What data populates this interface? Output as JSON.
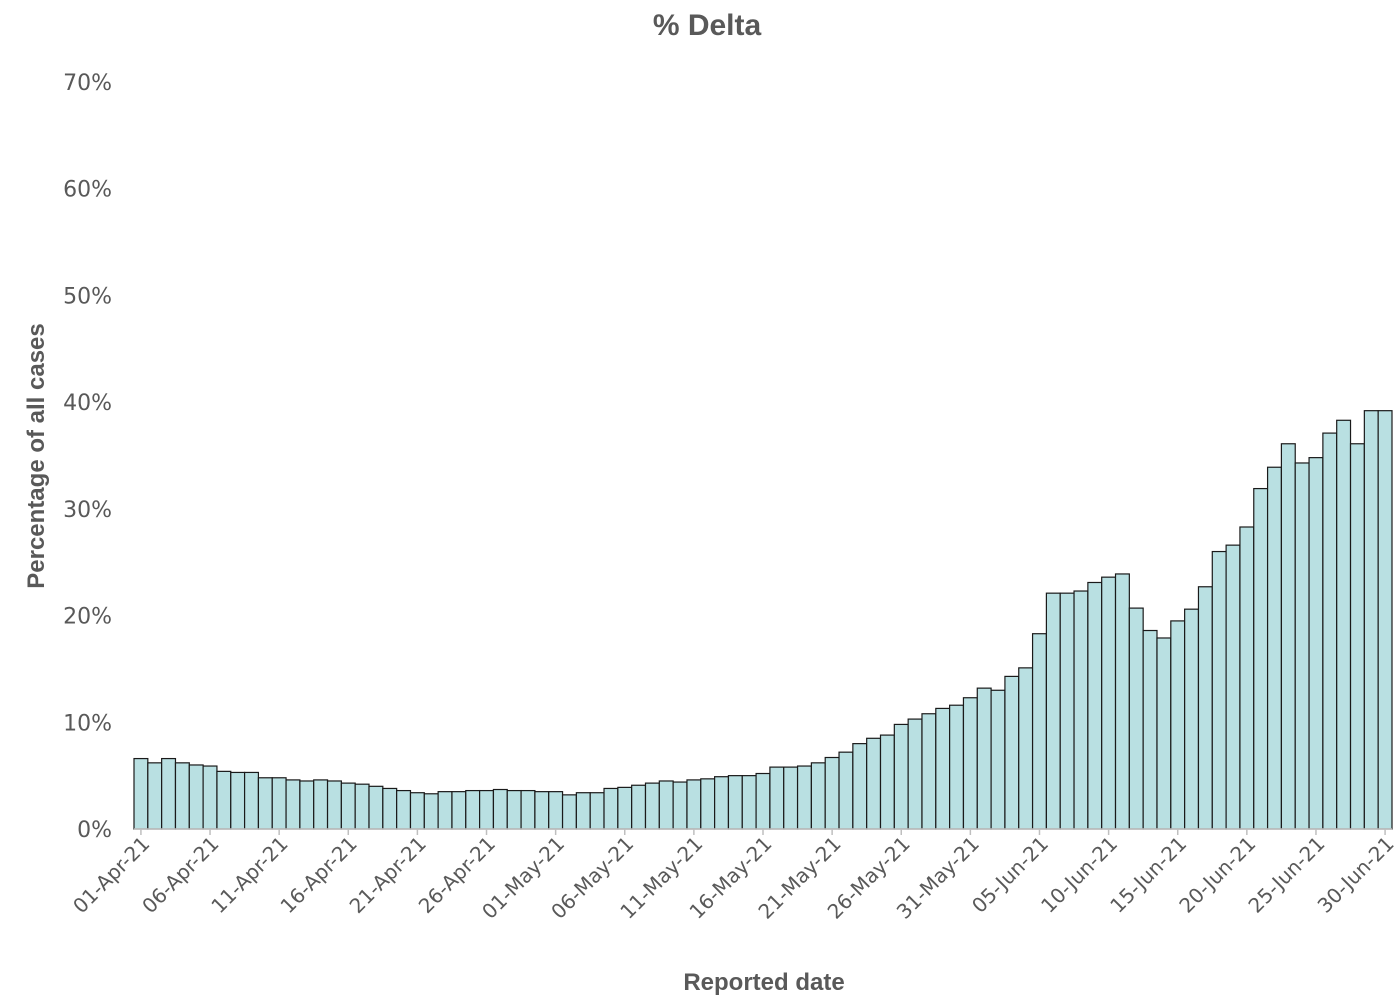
{
  "chart_data": {
    "type": "bar",
    "title": "% Delta",
    "xlabel": "Reported date",
    "ylabel": "Percentage of all cases",
    "ylim": [
      0,
      70
    ],
    "ytick_labels": [
      "0%",
      "10%",
      "20%",
      "30%",
      "40%",
      "50%",
      "60%",
      "70%"
    ],
    "xtick_labels": [
      "01-Apr-21",
      "06-Apr-21",
      "11-Apr-21",
      "16-Apr-21",
      "21-Apr-21",
      "26-Apr-21",
      "01-May-21",
      "06-May-21",
      "11-May-21",
      "16-May-21",
      "21-May-21",
      "26-May-21",
      "31-May-21",
      "05-Jun-21",
      "10-Jun-21",
      "15-Jun-21",
      "20-Jun-21",
      "25-Jun-21",
      "30-Jun-21"
    ],
    "grid": false,
    "legend": "none",
    "bar_color": "#b9e0e2",
    "start_date": "2021-04-01",
    "values": [
      6.6,
      6.2,
      6.6,
      6.2,
      6.0,
      5.9,
      5.4,
      5.3,
      5.3,
      4.8,
      4.8,
      4.6,
      4.5,
      4.6,
      4.5,
      4.3,
      4.2,
      4.0,
      3.8,
      3.6,
      3.4,
      3.3,
      3.5,
      3.5,
      3.6,
      3.6,
      3.7,
      3.6,
      3.6,
      3.5,
      3.5,
      3.2,
      3.4,
      3.4,
      3.8,
      3.9,
      4.1,
      4.3,
      4.5,
      4.4,
      4.6,
      4.7,
      4.9,
      5.0,
      5.0,
      5.2,
      5.8,
      5.8,
      5.9,
      6.2,
      6.7,
      7.2,
      8.0,
      8.5,
      8.8,
      9.8,
      10.3,
      10.8,
      11.3,
      11.6,
      12.3,
      13.2,
      13.0,
      14.3,
      15.1,
      18.3,
      22.1,
      22.1,
      22.3,
      23.1,
      23.6,
      23.9,
      20.7,
      18.6,
      17.9,
      19.5,
      20.6,
      22.7,
      26.0,
      26.6,
      28.3,
      31.9,
      33.9,
      36.1,
      34.3,
      34.8,
      37.1,
      38.3,
      36.1,
      39.2,
      39.2
    ]
  }
}
